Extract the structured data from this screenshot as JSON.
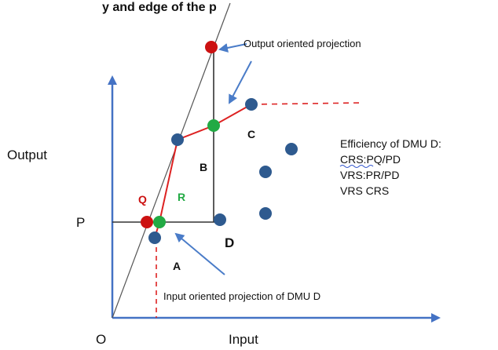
{
  "header_fragment": "y and edge of the p",
  "axes": {
    "x_label": "Input",
    "y_label": "Output",
    "origin_label": "O"
  },
  "labels": {
    "P": "P",
    "Q": "Q",
    "R": "R",
    "A": "A",
    "B": "B",
    "C": "C",
    "D": "D"
  },
  "annotations": {
    "output_projection": "Output oriented projection",
    "input_projection": "Input oriented projection of DMU D"
  },
  "efficiency_box": {
    "title": "Efficiency of DMU D:",
    "crs": "CRS:PQ/PD",
    "vrs": "VRS:PR/PD",
    "compare": "VRS CRS"
  },
  "colors": {
    "dmu_point": "#2e5a8f",
    "projection_crs": "#cc1111",
    "projection_vrs": "#22aa44",
    "axis": "#4472c4",
    "vrs_frontier": "#dd2222",
    "crs_frontier": "#444444",
    "label_q": "#cc1111",
    "label_r": "#22aa44"
  }
}
